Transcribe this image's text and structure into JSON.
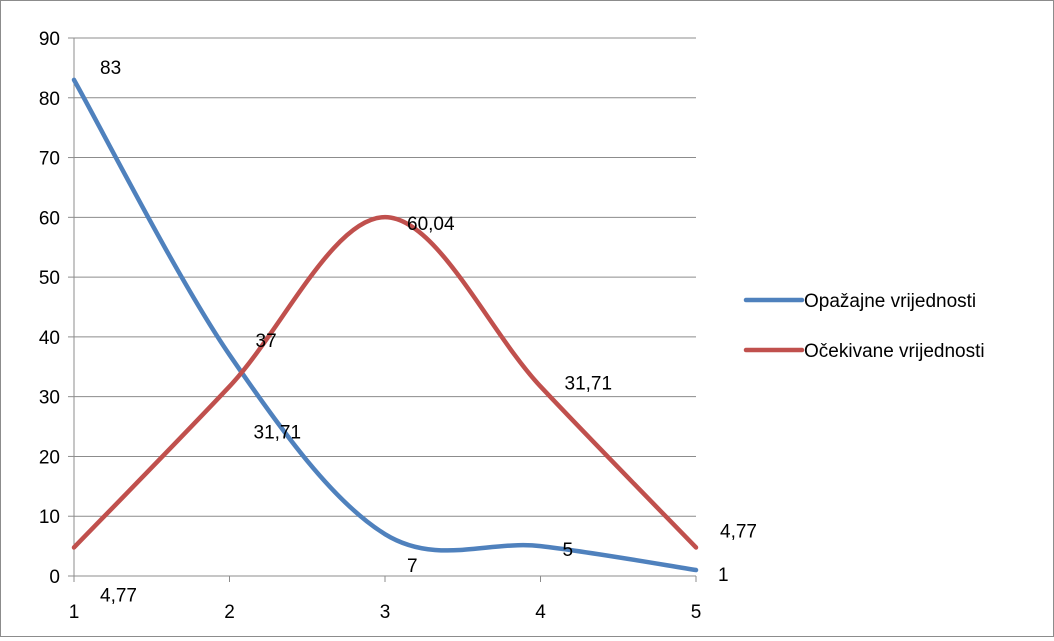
{
  "chart_data": {
    "type": "line",
    "title": "",
    "xlabel": "",
    "ylabel": "",
    "x": [
      1,
      2,
      3,
      4,
      5
    ],
    "xlim": [
      1,
      5
    ],
    "ylim": [
      0,
      90
    ],
    "x_ticks": [
      "1",
      "2",
      "3",
      "4",
      "5"
    ],
    "y_ticks": [
      "0",
      "10",
      "20",
      "30",
      "40",
      "50",
      "60",
      "70",
      "80",
      "90"
    ],
    "grid": true,
    "legend_position": "right",
    "smooth": true,
    "series": [
      {
        "name": "Opažajne vrijednosti",
        "color": "#4f81bd",
        "values": [
          83,
          37,
          7,
          5,
          1
        ],
        "labels": [
          "83",
          "37",
          "7",
          "5",
          "1"
        ]
      },
      {
        "name": "Očekivane vrijednosti",
        "color": "#c0504d",
        "values": [
          4.77,
          31.71,
          60.04,
          31.71,
          4.77
        ],
        "labels": [
          "4,77",
          "31,71",
          "60,04",
          "31,71",
          "4,77"
        ]
      }
    ]
  }
}
